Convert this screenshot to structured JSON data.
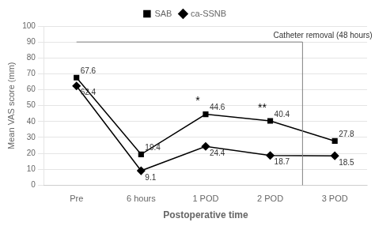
{
  "chart_data": {
    "type": "line",
    "categories": [
      "Pre",
      "6 hours",
      "1 POD",
      "2 POD",
      "3 POD"
    ],
    "series": [
      {
        "name": "SAB",
        "color": "#000000",
        "marker": "square",
        "values": [
          67.6,
          19.4,
          44.6,
          40.4,
          27.8
        ]
      },
      {
        "name": "ca-SSNB",
        "color": "#000000",
        "marker": "diamond",
        "values": [
          62.4,
          9.1,
          24.4,
          18.7,
          18.5
        ]
      }
    ],
    "xlabel": "Postoperative time",
    "ylabel": "Mean VAS score (mm)",
    "ylim": [
      0,
      100
    ],
    "yticks": [
      0,
      10,
      20,
      30,
      40,
      50,
      60,
      70,
      80,
      90,
      100
    ],
    "grid": "y",
    "legend": "top",
    "data_labels": true,
    "annotations": [
      {
        "text": "*",
        "category": "1 POD"
      },
      {
        "text": "**",
        "category": "2 POD"
      },
      {
        "text": "Catheter removal (48 hours)",
        "between": [
          "2 POD",
          "3 POD"
        ],
        "y": 90
      }
    ]
  }
}
